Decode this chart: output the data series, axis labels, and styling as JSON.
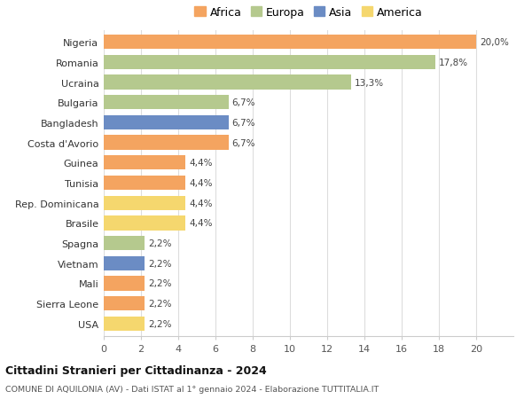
{
  "countries": [
    "Nigeria",
    "Romania",
    "Ucraina",
    "Bulgaria",
    "Bangladesh",
    "Costa d'Avorio",
    "Guinea",
    "Tunisia",
    "Rep. Dominicana",
    "Brasile",
    "Spagna",
    "Vietnam",
    "Mali",
    "Sierra Leone",
    "USA"
  ],
  "values": [
    20.0,
    17.8,
    13.3,
    6.7,
    6.7,
    6.7,
    4.4,
    4.4,
    4.4,
    4.4,
    2.2,
    2.2,
    2.2,
    2.2,
    2.2
  ],
  "labels": [
    "20,0%",
    "17,8%",
    "13,3%",
    "6,7%",
    "6,7%",
    "6,7%",
    "4,4%",
    "4,4%",
    "4,4%",
    "4,4%",
    "2,2%",
    "2,2%",
    "2,2%",
    "2,2%",
    "2,2%"
  ],
  "continents": [
    "Africa",
    "Europa",
    "Europa",
    "Europa",
    "Asia",
    "Africa",
    "Africa",
    "Africa",
    "America",
    "America",
    "Europa",
    "Asia",
    "Africa",
    "Africa",
    "America"
  ],
  "colors": {
    "Africa": "#F4A460",
    "Europa": "#B5C98E",
    "Asia": "#6B8CC4",
    "America": "#F5D76E"
  },
  "legend_order": [
    "Africa",
    "Europa",
    "Asia",
    "America"
  ],
  "legend_colors": {
    "Africa": "#F4A460",
    "Europa": "#B5C98E",
    "Asia": "#6B8CC4",
    "America": "#F5D76E"
  },
  "title": "Cittadini Stranieri per Cittadinanza - 2024",
  "subtitle": "COMUNE DI AQUILONIA (AV) - Dati ISTAT al 1° gennaio 2024 - Elaborazione TUTTITALIA.IT",
  "xlim": [
    0,
    22
  ],
  "xticks": [
    0,
    2,
    4,
    6,
    8,
    10,
    12,
    14,
    16,
    18,
    20
  ],
  "background_color": "#ffffff",
  "grid_color": "#dddddd"
}
